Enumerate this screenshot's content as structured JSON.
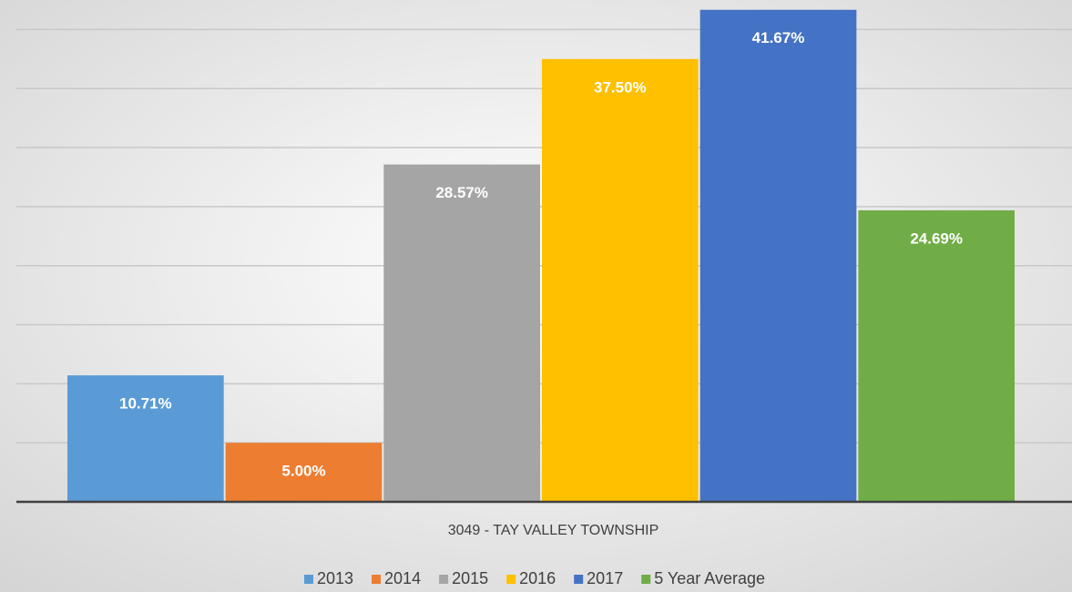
{
  "chart_data": {
    "type": "bar",
    "categories": [
      "3049 - TAY VALLEY TOWNSHIP"
    ],
    "series": [
      {
        "name": "2013",
        "color": "#5b9bd5",
        "values": [
          10.71
        ],
        "value_labels": [
          "10.71%"
        ]
      },
      {
        "name": "2014",
        "color": "#ed7d31",
        "values": [
          5.0
        ],
        "value_labels": [
          "5.00%"
        ]
      },
      {
        "name": "2015",
        "color": "#a5a5a5",
        "values": [
          28.57
        ],
        "value_labels": [
          "28.57%"
        ]
      },
      {
        "name": "2016",
        "color": "#ffc000",
        "values": [
          37.5
        ],
        "value_labels": [
          "37.50%"
        ]
      },
      {
        "name": "2017",
        "color": "#4472c4",
        "values": [
          41.67
        ],
        "value_labels": [
          "41.67%"
        ]
      },
      {
        "name": "5 Year Average",
        "color": "#70ad47",
        "values": [
          24.69
        ],
        "value_labels": [
          "24.69%"
        ]
      }
    ],
    "ylim": [
      0,
      42.5
    ],
    "yticks": [
      0,
      5,
      10,
      15,
      20,
      25,
      30,
      35,
      40
    ],
    "grid": true,
    "legend": "bottom"
  }
}
